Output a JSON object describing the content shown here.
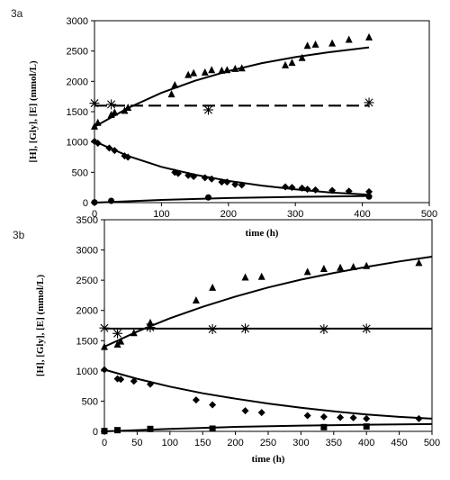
{
  "chart_data": [
    {
      "panel_label": "3a",
      "type": "scatter",
      "xlabel": "time (h)",
      "ylabel": "[H], [Gly], [E] (mmol/L)",
      "xlim": [
        0,
        500
      ],
      "ylim": [
        0,
        3000
      ],
      "xticks": [
        0,
        100,
        200,
        300,
        400,
        500
      ],
      "yticks": [
        0,
        500,
        1000,
        1500,
        2000,
        2500,
        3000
      ],
      "grid": false,
      "series": [
        {
          "marker": "triangle",
          "points": [
            [
              0,
              1250
            ],
            [
              5,
              1310
            ],
            [
              25,
              1440
            ],
            [
              30,
              1480
            ],
            [
              45,
              1510
            ],
            [
              50,
              1560
            ],
            [
              115,
              1780
            ],
            [
              120,
              1930
            ],
            [
              140,
              2100
            ],
            [
              148,
              2130
            ],
            [
              165,
              2140
            ],
            [
              175,
              2180
            ],
            [
              190,
              2170
            ],
            [
              198,
              2180
            ],
            [
              210,
              2200
            ],
            [
              220,
              2210
            ],
            [
              285,
              2260
            ],
            [
              295,
              2300
            ],
            [
              310,
              2380
            ],
            [
              318,
              2580
            ],
            [
              330,
              2600
            ],
            [
              355,
              2620
            ],
            [
              380,
              2680
            ],
            [
              410,
              2720
            ]
          ]
        },
        {
          "marker": "diamond",
          "points": [
            [
              0,
              1010
            ],
            [
              5,
              980
            ],
            [
              22,
              900
            ],
            [
              30,
              860
            ],
            [
              45,
              770
            ],
            [
              50,
              750
            ],
            [
              120,
              500
            ],
            [
              125,
              480
            ],
            [
              140,
              450
            ],
            [
              148,
              430
            ],
            [
              165,
              410
            ],
            [
              175,
              390
            ],
            [
              190,
              340
            ],
            [
              198,
              340
            ],
            [
              210,
              300
            ],
            [
              220,
              290
            ],
            [
              285,
              260
            ],
            [
              295,
              250
            ],
            [
              310,
              240
            ],
            [
              318,
              220
            ],
            [
              330,
              210
            ],
            [
              355,
              200
            ],
            [
              380,
              190
            ],
            [
              410,
              180
            ]
          ]
        },
        {
          "marker": "circle",
          "points": [
            [
              0,
              5
            ],
            [
              25,
              30
            ],
            [
              170,
              85
            ],
            [
              410,
              100
            ]
          ]
        },
        {
          "marker": "star",
          "points": [
            [
              0,
              1640
            ],
            [
              25,
              1620
            ],
            [
              170,
              1530
            ],
            [
              410,
              1650
            ]
          ]
        }
      ],
      "curves": [
        {
          "style": "solid",
          "points": [
            [
              0,
              1250
            ],
            [
              50,
              1560
            ],
            [
              100,
              1810
            ],
            [
              150,
              2010
            ],
            [
              200,
              2170
            ],
            [
              250,
              2300
            ],
            [
              300,
              2400
            ],
            [
              350,
              2480
            ],
            [
              410,
              2560
            ]
          ]
        },
        {
          "style": "solid",
          "points": [
            [
              0,
              1010
            ],
            [
              50,
              770
            ],
            [
              100,
              590
            ],
            [
              150,
              460
            ],
            [
              200,
              360
            ],
            [
              250,
              280
            ],
            [
              300,
              220
            ],
            [
              350,
              170
            ],
            [
              410,
              130
            ]
          ]
        },
        {
          "style": "solid",
          "points": [
            [
              0,
              0
            ],
            [
              100,
              45
            ],
            [
              200,
              75
            ],
            [
              300,
              95
            ],
            [
              410,
              110
            ]
          ]
        },
        {
          "style": "dashed",
          "points": [
            [
              0,
              1600
            ],
            [
              410,
              1600
            ]
          ]
        }
      ]
    },
    {
      "panel_label": "3b",
      "type": "scatter",
      "xlabel": "time (h)",
      "ylabel": "[H], [Gly], [E] (mmol/L)",
      "xlim": [
        0,
        500
      ],
      "ylim": [
        0,
        3500
      ],
      "xticks": [
        0,
        50,
        100,
        150,
        200,
        250,
        300,
        350,
        400,
        450,
        500
      ],
      "yticks": [
        0,
        500,
        1000,
        1500,
        2000,
        2500,
        3000,
        3500
      ],
      "grid": false,
      "series": [
        {
          "marker": "triangle",
          "points": [
            [
              0,
              1390
            ],
            [
              20,
              1430
            ],
            [
              25,
              1480
            ],
            [
              45,
              1620
            ],
            [
              70,
              1790
            ],
            [
              140,
              2160
            ],
            [
              165,
              2370
            ],
            [
              215,
              2540
            ],
            [
              240,
              2550
            ],
            [
              310,
              2630
            ],
            [
              335,
              2680
            ],
            [
              360,
              2700
            ],
            [
              380,
              2710
            ],
            [
              400,
              2730
            ],
            [
              480,
              2780
            ]
          ]
        },
        {
          "marker": "diamond",
          "points": [
            [
              0,
              1020
            ],
            [
              20,
              870
            ],
            [
              25,
              860
            ],
            [
              45,
              830
            ],
            [
              70,
              780
            ],
            [
              140,
              520
            ],
            [
              165,
              440
            ],
            [
              215,
              340
            ],
            [
              240,
              310
            ],
            [
              310,
              260
            ],
            [
              335,
              240
            ],
            [
              360,
              230
            ],
            [
              380,
              225
            ],
            [
              400,
              210
            ],
            [
              480,
              210
            ]
          ]
        },
        {
          "marker": "square",
          "points": [
            [
              0,
              5
            ],
            [
              20,
              20
            ],
            [
              70,
              40
            ],
            [
              165,
              45
            ],
            [
              335,
              70
            ],
            [
              400,
              80
            ]
          ]
        },
        {
          "marker": "star",
          "points": [
            [
              0,
              1710
            ],
            [
              20,
              1620
            ],
            [
              70,
              1720
            ],
            [
              165,
              1690
            ],
            [
              215,
              1700
            ],
            [
              335,
              1690
            ],
            [
              400,
              1700
            ]
          ]
        }
      ],
      "curves": [
        {
          "style": "solid",
          "points": [
            [
              0,
              1400
            ],
            [
              50,
              1650
            ],
            [
              100,
              1870
            ],
            [
              150,
              2060
            ],
            [
              200,
              2230
            ],
            [
              250,
              2380
            ],
            [
              300,
              2510
            ],
            [
              350,
              2620
            ],
            [
              400,
              2720
            ],
            [
              450,
              2810
            ],
            [
              500,
              2890
            ]
          ]
        },
        {
          "style": "solid",
          "points": [
            [
              0,
              1020
            ],
            [
              50,
              870
            ],
            [
              100,
              740
            ],
            [
              150,
              630
            ],
            [
              200,
              540
            ],
            [
              250,
              460
            ],
            [
              300,
              390
            ],
            [
              350,
              330
            ],
            [
              400,
              280
            ],
            [
              450,
              240
            ],
            [
              500,
              210
            ]
          ]
        },
        {
          "style": "solid",
          "points": [
            [
              0,
              0
            ],
            [
              100,
              40
            ],
            [
              200,
              75
            ],
            [
              300,
              95
            ],
            [
              400,
              110
            ],
            [
              500,
              120
            ]
          ]
        },
        {
          "style": "solid",
          "points": [
            [
              0,
              1700
            ],
            [
              500,
              1700
            ]
          ]
        }
      ]
    }
  ]
}
